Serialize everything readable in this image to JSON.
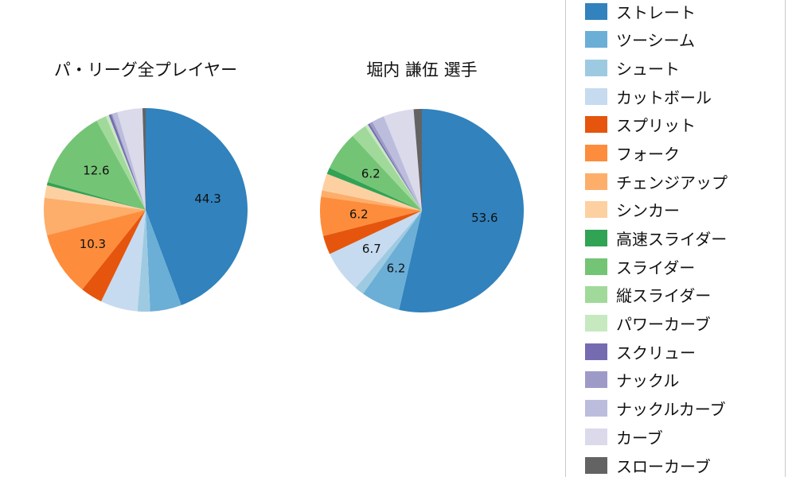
{
  "page": {
    "background": "#ffffff"
  },
  "chart_data": [
    {
      "type": "pie",
      "title": "パ・リーグ全プレイヤー",
      "start_angle": "top",
      "direction": "clockwise",
      "label_threshold": 6.0,
      "legend_position": "right",
      "categories": [
        "ストレート",
        "ツーシーム",
        "シュート",
        "カットボール",
        "スプリット",
        "フォーク",
        "チェンジアップ",
        "シンカー",
        "高速スライダー",
        "スライダー",
        "縦スライダー",
        "パワーカーブ",
        "スクリュー",
        "ナックル",
        "ナックルカーブ",
        "カーブ",
        "スローカーブ"
      ],
      "values": [
        44.3,
        5.0,
        2.0,
        5.9,
        3.5,
        10.3,
        5.9,
        2.0,
        0.5,
        12.6,
        1.6,
        0.5,
        0.4,
        0.2,
        0.8,
        4.0,
        0.5
      ],
      "colors": [
        "#3182bd",
        "#6baed6",
        "#9ecae1",
        "#c6dbef",
        "#e6550d",
        "#fd8d3c",
        "#fdae6b",
        "#fdd0a2",
        "#31a354",
        "#74c476",
        "#a1d99b",
        "#c7e9c0",
        "#756bb1",
        "#9e9ac8",
        "#bcbddc",
        "#dadaeb",
        "#636363"
      ],
      "visible_value_labels": [
        "44.3",
        "10.3",
        "12.6"
      ]
    },
    {
      "type": "pie",
      "title": "堀内 謙伍  選手",
      "start_angle": "top",
      "direction": "clockwise",
      "label_threshold": 6.0,
      "legend_position": "right",
      "categories": [
        "ストレート",
        "ツーシーム",
        "シュート",
        "カットボール",
        "スプリット",
        "フォーク",
        "チェンジアップ",
        "シンカー",
        "高速スライダー",
        "スライダー",
        "縦スライダー",
        "パワーカーブ",
        "スクリュー",
        "ナックル",
        "ナックルカーブ",
        "カーブ",
        "スローカーブ"
      ],
      "values": [
        53.6,
        6.2,
        1.5,
        6.7,
        3.0,
        6.2,
        1.0,
        2.7,
        1.0,
        6.2,
        2.5,
        0.5,
        0.3,
        0.5,
        2.0,
        4.8,
        1.3
      ],
      "colors": [
        "#3182bd",
        "#6baed6",
        "#9ecae1",
        "#c6dbef",
        "#e6550d",
        "#fd8d3c",
        "#fdae6b",
        "#fdd0a2",
        "#31a354",
        "#74c476",
        "#a1d99b",
        "#c7e9c0",
        "#756bb1",
        "#9e9ac8",
        "#bcbddc",
        "#dadaeb",
        "#636363"
      ],
      "visible_value_labels": [
        "53.6",
        "6.2",
        "6.7",
        "6.2",
        "6.2"
      ]
    }
  ],
  "legend": {
    "items": [
      {
        "label": "ストレート",
        "color": "#3182bd"
      },
      {
        "label": "ツーシーム",
        "color": "#6baed6"
      },
      {
        "label": "シュート",
        "color": "#9ecae1"
      },
      {
        "label": "カットボール",
        "color": "#c6dbef"
      },
      {
        "label": "スプリット",
        "color": "#e6550d"
      },
      {
        "label": "フォーク",
        "color": "#fd8d3c"
      },
      {
        "label": "チェンジアップ",
        "color": "#fdae6b"
      },
      {
        "label": "シンカー",
        "color": "#fdd0a2"
      },
      {
        "label": "高速スライダー",
        "color": "#31a354"
      },
      {
        "label": "スライダー",
        "color": "#74c476"
      },
      {
        "label": "縦スライダー",
        "color": "#a1d99b"
      },
      {
        "label": "パワーカーブ",
        "color": "#c7e9c0"
      },
      {
        "label": "スクリュー",
        "color": "#756bb1"
      },
      {
        "label": "ナックル",
        "color": "#9e9ac8"
      },
      {
        "label": "ナックルカーブ",
        "color": "#bcbddc"
      },
      {
        "label": "カーブ",
        "color": "#dadaeb"
      },
      {
        "label": "スローカーブ",
        "color": "#636363"
      }
    ]
  }
}
